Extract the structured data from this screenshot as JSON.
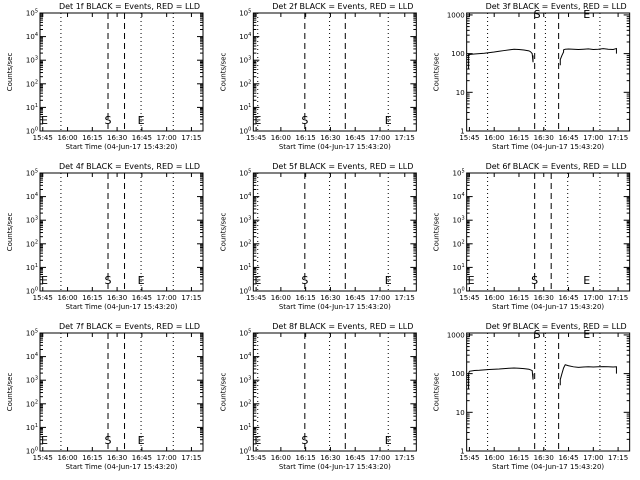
{
  "chart_data": [
    {
      "type": "line",
      "title": "Det 1f BLACK = Events, RED = LLD",
      "xlabel": "Start Time (04-Jun-17 15:43:20)",
      "ylabel": "Counts/sec",
      "x_ticks": [
        "15:45",
        "16:00",
        "16:15",
        "16:30",
        "16:45",
        "17:00",
        "17:15"
      ],
      "x_tick_minutes": [
        0,
        15,
        30,
        45,
        60,
        75,
        90
      ],
      "xlim_minutes": [
        -1.67,
        97
      ],
      "y_scale": "log",
      "y_tick_exponents": [
        0,
        1,
        2,
        3,
        4,
        5
      ],
      "ylim_exponent": [
        0,
        5
      ],
      "dotted_lines_minutes": [
        11,
        59.5,
        79
      ],
      "dashed_lines_minutes": [
        39.5,
        49.5
      ],
      "markers": [
        {
          "text": "E",
          "minute": -1.67
        },
        {
          "text": "S",
          "minute": 39.5
        },
        {
          "text": "E",
          "minute": 59.5
        }
      ],
      "series": []
    },
    {
      "type": "line",
      "title": "Det 2f BLACK = Events, RED = LLD",
      "xlabel": "Start Time (04-Jun-17 15:43:20)",
      "ylabel": "Counts/sec",
      "x_ticks": [
        "15:45",
        "16:00",
        "16:15",
        "16:30",
        "16:45",
        "17:00",
        "17:15"
      ],
      "x_tick_minutes": [
        0,
        15,
        30,
        45,
        60,
        75,
        90
      ],
      "xlim_minutes": [
        -1.67,
        97
      ],
      "y_scale": "log",
      "y_tick_exponents": [
        0,
        1,
        2,
        3,
        4,
        5
      ],
      "ylim_exponent": [
        0,
        5
      ],
      "dotted_lines_minutes": [
        1,
        44.5,
        80
      ],
      "dashed_lines_minutes": [
        29.5,
        54
      ],
      "markers": [
        {
          "text": "E",
          "minute": -1.67
        },
        {
          "text": "S",
          "minute": 29.5
        },
        {
          "text": "E",
          "minute": 80
        }
      ],
      "series": []
    },
    {
      "type": "line",
      "title": "Det 3f BLACK = Events, RED = LLD",
      "xlabel": "Start Time (04-Jun-17 15:43:20)",
      "ylabel": "Counts/sec",
      "x_ticks": [
        "15:45",
        "16:00",
        "16:15",
        "16:30",
        "16:45",
        "17:00",
        "17:15"
      ],
      "x_tick_minutes": [
        0,
        15,
        30,
        45,
        60,
        75,
        90
      ],
      "xlim_minutes": [
        -1.67,
        97
      ],
      "y_scale": "log",
      "y_tick_labels": [
        "1",
        "10",
        "100",
        "1000"
      ],
      "y_tick_exponents": [
        0,
        1,
        2,
        3
      ],
      "ylim_exponent": [
        0,
        3.05
      ],
      "dotted_lines_minutes": [
        11,
        46,
        79
      ],
      "dashed_lines_minutes": [
        39.5,
        54
      ],
      "markers": [
        {
          "text": "S",
          "minute": 41
        },
        {
          "text": "E",
          "minute": 71
        }
      ],
      "series": [
        {
          "color": "#000000",
          "segments": [
            {
              "x": [
                -0.5,
                -0.5,
                0,
                3,
                6,
                9,
                12,
                15,
                18,
                21,
                24,
                27,
                30,
                33,
                36,
                37,
                38,
                38.5,
                38.5
              ],
              "y": [
                40,
                95,
                95,
                98,
                100,
                102,
                106,
                110,
                115,
                120,
                125,
                130,
                128,
                124,
                118,
                112,
                100,
                60,
                90
              ]
            },
            {
              "x": [
                55,
                55,
                56,
                57,
                57,
                58,
                60,
                63,
                66,
                69,
                72,
                75,
                78,
                81,
                84,
                87,
                89,
                89
              ],
              "y": [
                50,
                70,
                90,
                110,
                125,
                130,
                132,
                130,
                128,
                130,
                133,
                128,
                130,
                135,
                130,
                128,
                135,
                100
              ]
            }
          ]
        }
      ]
    },
    {
      "type": "line",
      "title": "Det 4f BLACK = Events, RED = LLD",
      "xlabel": "Start Time (04-Jun-17 15:43:20)",
      "ylabel": "Counts/sec",
      "x_ticks": [
        "15:45",
        "16:00",
        "16:15",
        "16:30",
        "16:45",
        "17:00",
        "17:15"
      ],
      "x_tick_minutes": [
        0,
        15,
        30,
        45,
        60,
        75,
        90
      ],
      "xlim_minutes": [
        -1.67,
        97
      ],
      "y_scale": "log",
      "y_tick_exponents": [
        0,
        1,
        2,
        3,
        4,
        5
      ],
      "ylim_exponent": [
        0,
        5
      ],
      "dotted_lines_minutes": [
        11,
        59.5,
        79
      ],
      "dashed_lines_minutes": [
        39.5,
        49.5
      ],
      "markers": [
        {
          "text": "E",
          "minute": -1.67
        },
        {
          "text": "S",
          "minute": 39.5
        },
        {
          "text": "E",
          "minute": 59.5
        }
      ],
      "series": []
    },
    {
      "type": "line",
      "title": "Det 5f BLACK = Events, RED = LLD",
      "xlabel": "Start Time (04-Jun-17 15:43:20)",
      "ylabel": "Counts/sec",
      "x_ticks": [
        "15:45",
        "16:00",
        "16:15",
        "16:30",
        "16:45",
        "17:00",
        "17:15"
      ],
      "x_tick_minutes": [
        0,
        15,
        30,
        45,
        60,
        75,
        90
      ],
      "xlim_minutes": [
        -1.67,
        97
      ],
      "y_scale": "log",
      "y_tick_exponents": [
        0,
        1,
        2,
        3,
        4,
        5
      ],
      "ylim_exponent": [
        0,
        5
      ],
      "dotted_lines_minutes": [
        1,
        44.5,
        80
      ],
      "dashed_lines_minutes": [
        29.5,
        54
      ],
      "markers": [
        {
          "text": "E",
          "minute": -1.67
        },
        {
          "text": "S",
          "minute": 29.5
        },
        {
          "text": "E",
          "minute": 80
        }
      ],
      "series": []
    },
    {
      "type": "line",
      "title": "Det 6f BLACK = Events, RED = LLD",
      "xlabel": "Start Time (04-Jun-17 15:43:20)",
      "ylabel": "Counts/sec",
      "x_ticks": [
        "15:45",
        "16:00",
        "16:15",
        "16:30",
        "16:45",
        "17:00",
        "17:15"
      ],
      "x_tick_minutes": [
        0,
        15,
        30,
        45,
        60,
        75,
        90
      ],
      "xlim_minutes": [
        -1.67,
        97
      ],
      "y_scale": "log",
      "y_tick_exponents": [
        0,
        1,
        2,
        3,
        4,
        5
      ],
      "ylim_exponent": [
        0,
        5
      ],
      "dotted_lines_minutes": [
        11,
        59.5,
        79
      ],
      "dashed_lines_minutes": [
        39.5,
        49.5
      ],
      "markers": [
        {
          "text": "E",
          "minute": -1.67
        },
        {
          "text": "S",
          "minute": 39.5
        },
        {
          "text": "E",
          "minute": 71
        }
      ],
      "series": []
    },
    {
      "type": "line",
      "title": "Det 7f BLACK = Events, RED = LLD",
      "xlabel": "Start Time (04-Jun-17 15:43:20)",
      "ylabel": "Counts/sec",
      "x_ticks": [
        "15:45",
        "16:00",
        "16:15",
        "16:30",
        "16:45",
        "17:00",
        "17:15"
      ],
      "x_tick_minutes": [
        0,
        15,
        30,
        45,
        60,
        75,
        90
      ],
      "xlim_minutes": [
        -1.67,
        97
      ],
      "y_scale": "log",
      "y_tick_exponents": [
        0,
        1,
        2,
        3,
        4,
        5
      ],
      "ylim_exponent": [
        0,
        5
      ],
      "dotted_lines_minutes": [
        11,
        59.5,
        79
      ],
      "dashed_lines_minutes": [
        39.5,
        49.5
      ],
      "markers": [
        {
          "text": "E",
          "minute": -1.67
        },
        {
          "text": "S",
          "minute": 39.5
        },
        {
          "text": "E",
          "minute": 59.5
        }
      ],
      "series": []
    },
    {
      "type": "line",
      "title": "Det 8f BLACK = Events, RED = LLD",
      "xlabel": "Start Time (04-Jun-17 15:43:20)",
      "ylabel": "Counts/sec",
      "x_ticks": [
        "15:45",
        "16:00",
        "16:15",
        "16:30",
        "16:45",
        "17:00",
        "17:15"
      ],
      "x_tick_minutes": [
        0,
        15,
        30,
        45,
        60,
        75,
        90
      ],
      "xlim_minutes": [
        -1.67,
        97
      ],
      "y_scale": "log",
      "y_tick_exponents": [
        0,
        1,
        2,
        3,
        4,
        5
      ],
      "ylim_exponent": [
        0,
        5
      ],
      "dotted_lines_minutes": [
        1,
        44.5,
        80
      ],
      "dashed_lines_minutes": [
        29.5,
        54
      ],
      "markers": [
        {
          "text": "E",
          "minute": -1.67
        },
        {
          "text": "S",
          "minute": 29.5
        },
        {
          "text": "E",
          "minute": 80
        }
      ],
      "series": []
    },
    {
      "type": "line",
      "title": "Det 9f BLACK = Events, RED = LLD",
      "xlabel": "Start Time (04-Jun-17 15:43:20)",
      "ylabel": "Counts/sec",
      "x_ticks": [
        "15:45",
        "16:00",
        "16:15",
        "16:30",
        "16:45",
        "17:00",
        "17:15"
      ],
      "x_tick_minutes": [
        0,
        15,
        30,
        45,
        60,
        75,
        90
      ],
      "xlim_minutes": [
        -1.67,
        97
      ],
      "y_scale": "log",
      "y_tick_labels": [
        "1",
        "10",
        "100",
        "1000"
      ],
      "y_tick_exponents": [
        0,
        1,
        2,
        3
      ],
      "ylim_exponent": [
        0,
        3.05
      ],
      "dotted_lines_minutes": [
        11,
        46,
        79
      ],
      "dashed_lines_minutes": [
        39.5,
        54
      ],
      "markers": [
        {
          "text": "S",
          "minute": 41
        },
        {
          "text": "E",
          "minute": 71
        }
      ],
      "series": [
        {
          "color": "#000000",
          "segments": [
            {
              "x": [
                -0.5,
                -0.5,
                0,
                3,
                6,
                9,
                12,
                15,
                18,
                21,
                24,
                27,
                30,
                33,
                36,
                38,
                38.5,
                38.5
              ],
              "y": [
                40,
                100,
                115,
                120,
                122,
                125,
                128,
                130,
                132,
                135,
                138,
                140,
                138,
                135,
                130,
                120,
                70,
                100
              ]
            },
            {
              "x": [
                55,
                55,
                56,
                57,
                58,
                60,
                63,
                66,
                69,
                72,
                75,
                78,
                81,
                84,
                87,
                89,
                89
              ],
              "y": [
                50,
                70,
                100,
                140,
                170,
                160,
                150,
                145,
                148,
                150,
                148,
                150,
                152,
                150,
                148,
                150,
                100
              ]
            }
          ]
        }
      ]
    }
  ]
}
